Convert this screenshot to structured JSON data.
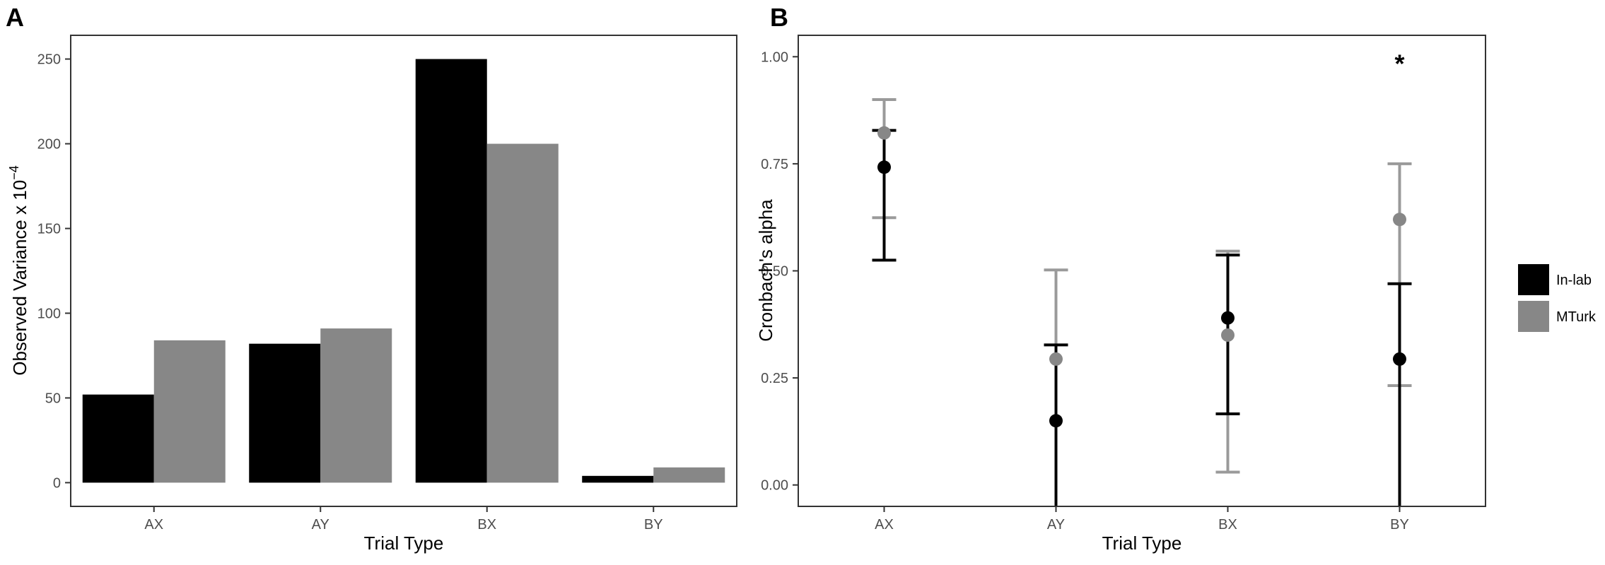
{
  "colors": {
    "in_lab": "#000000",
    "mturk": "#878787",
    "mturk_err": "#9a9a9a",
    "panel_border": "#333333",
    "tick": "#4d4d4d"
  },
  "chart_data": [
    {
      "type": "bar",
      "panel_label": "A",
      "title": "",
      "xlabel": "Trial Type",
      "ylabel": "Observed Variance x 10",
      "ylabel_superscript": "−4",
      "categories": [
        "AX",
        "AY",
        "BX",
        "BY"
      ],
      "series": [
        {
          "name": "In-lab",
          "values": [
            52,
            82,
            250,
            4
          ]
        },
        {
          "name": "MTurk",
          "values": [
            84,
            91,
            200,
            9
          ]
        }
      ],
      "ylim": [
        -14,
        264
      ],
      "yticks": [
        0,
        50,
        100,
        150,
        200,
        250
      ],
      "ytick_labels": [
        "0",
        "50",
        "100",
        "150",
        "200",
        "250"
      ],
      "grid": false
    },
    {
      "type": "scatter",
      "panel_label": "B",
      "title": "",
      "xlabel": "Trial Type",
      "ylabel": "Cronbach's alpha",
      "categories": [
        "AX",
        "AY",
        "BX",
        "BY"
      ],
      "series": [
        {
          "name": "In-lab",
          "values": [
            0.742,
            0.15,
            0.39,
            0.294
          ],
          "lower": [
            0.525,
            -0.08,
            0.166,
            -0.08
          ],
          "upper": [
            0.828,
            0.327,
            0.537,
            0.47
          ]
        },
        {
          "name": "MTurk",
          "values": [
            0.822,
            0.294,
            0.35,
            0.62
          ],
          "lower": [
            0.624,
            -0.08,
            0.03,
            0.232
          ],
          "upper": [
            0.9,
            0.502,
            0.546,
            0.75
          ]
        }
      ],
      "annotations": [
        {
          "category": "BY",
          "y": 1.01,
          "text": "*"
        }
      ],
      "ylim": [
        -0.05,
        1.05
      ],
      "yticks": [
        0.0,
        0.25,
        0.5,
        0.75,
        1.0
      ],
      "ytick_labels": [
        "0.00",
        "0.25",
        "0.50",
        "0.75",
        "1.00"
      ],
      "grid": false,
      "legend": {
        "position": "right",
        "entries": [
          "In-lab",
          "MTurk"
        ]
      }
    }
  ]
}
